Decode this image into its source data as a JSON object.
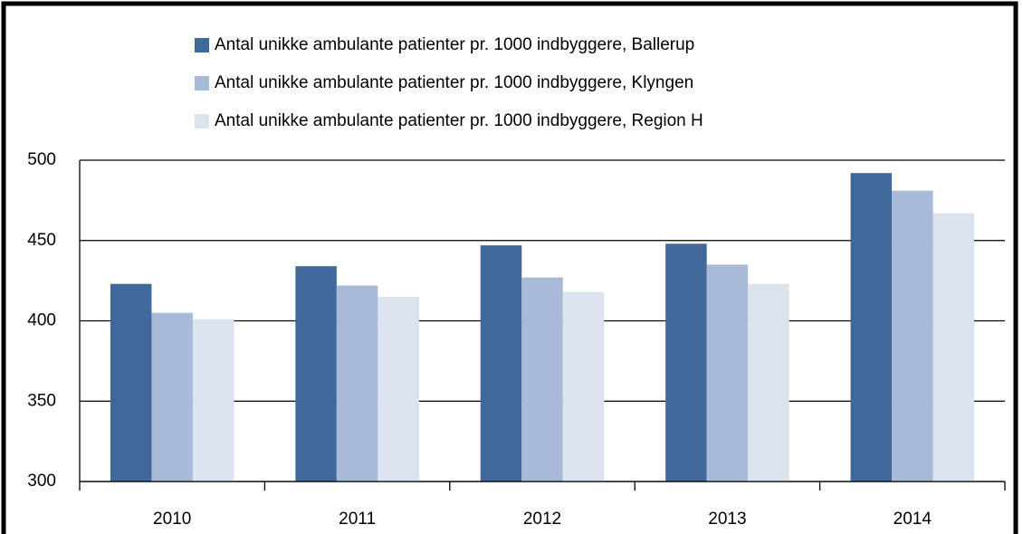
{
  "chart_data": {
    "type": "bar",
    "categories": [
      "2010",
      "2011",
      "2012",
      "2013",
      "2014"
    ],
    "series": [
      {
        "name": "Antal unikke ambulante patienter pr. 1000 indbyggere, Ballerup",
        "color": "#41689a",
        "values": [
          423,
          434,
          447,
          448,
          492
        ]
      },
      {
        "name": "Antal unikke ambulante patienter pr. 1000 indbyggere, Klyngen",
        "color": "#a9b9d8",
        "values": [
          405,
          422,
          427,
          435,
          481
        ]
      },
      {
        "name": "Antal unikke ambulante patienter pr. 1000 indbyggere, Region H",
        "color": "#dce3ef",
        "values": [
          401,
          415,
          418,
          423,
          467
        ]
      }
    ],
    "ylim": [
      300,
      500
    ],
    "yticks": [
      300,
      350,
      400,
      450,
      500
    ],
    "grid": true,
    "legend": "top"
  }
}
